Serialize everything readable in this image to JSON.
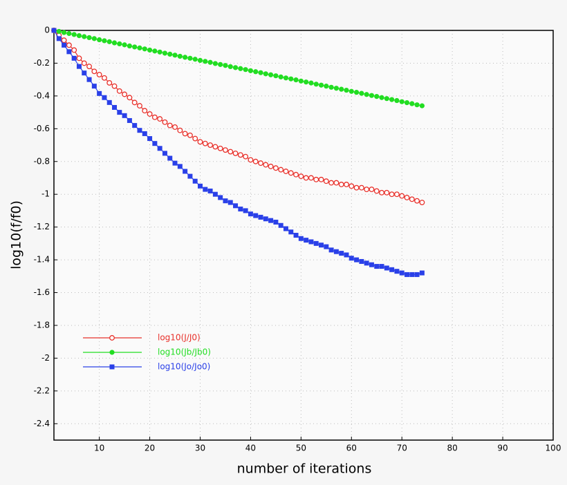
{
  "chart_data": {
    "type": "line",
    "xlabel": "number of iterations",
    "ylabel": "log10(f/f0)",
    "x": [
      1,
      2,
      3,
      4,
      5,
      6,
      7,
      8,
      9,
      10,
      11,
      12,
      13,
      14,
      15,
      16,
      17,
      18,
      19,
      20,
      21,
      22,
      23,
      24,
      25,
      26,
      27,
      28,
      29,
      30,
      31,
      32,
      33,
      34,
      35,
      36,
      37,
      38,
      39,
      40,
      41,
      42,
      43,
      44,
      45,
      46,
      47,
      48,
      49,
      50,
      51,
      52,
      53,
      54,
      55,
      56,
      57,
      58,
      59,
      60,
      61,
      62,
      63,
      64,
      65,
      66,
      67,
      68,
      69,
      70,
      71,
      72,
      73,
      74
    ],
    "series": [
      {
        "name": "log10(J/J0)",
        "color": "#e8302a",
        "marker": "open-circle",
        "values": [
          0,
          -0.03,
          -0.06,
          -0.09,
          -0.12,
          -0.17,
          -0.2,
          -0.22,
          -0.25,
          -0.27,
          -0.29,
          -0.32,
          -0.34,
          -0.37,
          -0.39,
          -0.41,
          -0.44,
          -0.46,
          -0.49,
          -0.51,
          -0.53,
          -0.54,
          -0.56,
          -0.58,
          -0.59,
          -0.61,
          -0.63,
          -0.64,
          -0.66,
          -0.68,
          -0.69,
          -0.7,
          -0.71,
          -0.72,
          -0.73,
          -0.74,
          -0.75,
          -0.76,
          -0.77,
          -0.79,
          -0.8,
          -0.81,
          -0.82,
          -0.83,
          -0.84,
          -0.85,
          -0.86,
          -0.87,
          -0.88,
          -0.89,
          -0.9,
          -0.9,
          -0.91,
          -0.91,
          -0.92,
          -0.93,
          -0.93,
          -0.94,
          -0.94,
          -0.95,
          -0.96,
          -0.96,
          -0.97,
          -0.97,
          -0.98,
          -0.99,
          -0.99,
          -1.0,
          -1.0,
          -1.01,
          -1.02,
          -1.03,
          -1.04,
          -1.05
        ]
      },
      {
        "name": "log10(Jb/Jb0)",
        "color": "#22dd22",
        "marker": "circle",
        "values": [
          0,
          -0.006,
          -0.013,
          -0.019,
          -0.025,
          -0.032,
          -0.038,
          -0.044,
          -0.05,
          -0.057,
          -0.063,
          -0.069,
          -0.076,
          -0.082,
          -0.088,
          -0.095,
          -0.101,
          -0.107,
          -0.113,
          -0.12,
          -0.126,
          -0.132,
          -0.139,
          -0.145,
          -0.151,
          -0.158,
          -0.164,
          -0.17,
          -0.176,
          -0.183,
          -0.189,
          -0.195,
          -0.202,
          -0.208,
          -0.214,
          -0.221,
          -0.227,
          -0.233,
          -0.239,
          -0.246,
          -0.252,
          -0.258,
          -0.265,
          -0.271,
          -0.277,
          -0.284,
          -0.29,
          -0.296,
          -0.302,
          -0.309,
          -0.315,
          -0.321,
          -0.328,
          -0.334,
          -0.34,
          -0.347,
          -0.353,
          -0.359,
          -0.365,
          -0.372,
          -0.378,
          -0.384,
          -0.391,
          -0.397,
          -0.403,
          -0.41,
          -0.416,
          -0.422,
          -0.428,
          -0.435,
          -0.441,
          -0.447,
          -0.454,
          -0.46
        ]
      },
      {
        "name": "log10(Jo/Jo0)",
        "color": "#2a40e8",
        "marker": "square",
        "values": [
          0,
          -0.05,
          -0.09,
          -0.13,
          -0.17,
          -0.22,
          -0.26,
          -0.3,
          -0.34,
          -0.385,
          -0.41,
          -0.44,
          -0.47,
          -0.5,
          -0.52,
          -0.55,
          -0.58,
          -0.61,
          -0.63,
          -0.66,
          -0.69,
          -0.72,
          -0.75,
          -0.78,
          -0.81,
          -0.83,
          -0.86,
          -0.89,
          -0.92,
          -0.95,
          -0.97,
          -0.98,
          -1.0,
          -1.02,
          -1.04,
          -1.05,
          -1.07,
          -1.09,
          -1.1,
          -1.12,
          -1.13,
          -1.14,
          -1.15,
          -1.16,
          -1.17,
          -1.19,
          -1.21,
          -1.23,
          -1.25,
          -1.27,
          -1.28,
          -1.29,
          -1.3,
          -1.31,
          -1.32,
          -1.34,
          -1.35,
          -1.36,
          -1.37,
          -1.39,
          -1.4,
          -1.41,
          -1.42,
          -1.43,
          -1.44,
          -1.44,
          -1.45,
          -1.46,
          -1.47,
          -1.48,
          -1.49,
          -1.49,
          -1.49,
          -1.48
        ]
      }
    ],
    "xlim": [
      1,
      100
    ],
    "xticks": [
      10,
      20,
      30,
      40,
      50,
      60,
      70,
      80,
      90,
      100
    ],
    "ylim": [
      -2.5,
      0
    ],
    "yticks": [
      0,
      -0.2,
      -0.4,
      -0.6,
      -0.8,
      -1,
      -1.2,
      -1.4,
      -1.6,
      -1.8,
      -2,
      -2.2,
      -2.4
    ],
    "grid": true,
    "legend": "lower left"
  }
}
